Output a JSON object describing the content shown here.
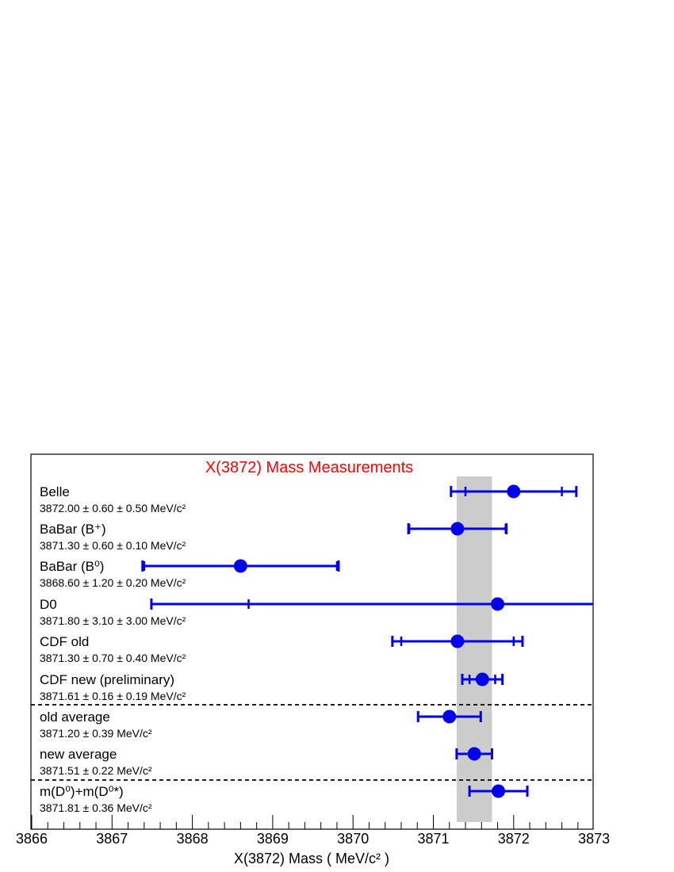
{
  "chart_data": {
    "type": "scatter",
    "title": "X(3872) Mass Measurements",
    "xlabel": "X(3872) Mass  ( MeV/c² )",
    "xlim": [
      3866,
      3873
    ],
    "x_ticks": [
      "3866",
      "3867",
      "3868",
      "3869",
      "3870",
      "3871",
      "3872",
      "3873"
    ],
    "grid": false,
    "band": {
      "low": 3871.29,
      "high": 3871.73
    },
    "colors": {
      "title": "#ff0000",
      "points": "#0000ee",
      "band": "#cccccc"
    },
    "entries": [
      {
        "name": "Belle",
        "value_text": "3872.00 ± 0.60 ± 0.50 MeV/c²",
        "x": 3872.0,
        "stat": 0.6,
        "total": 0.78
      },
      {
        "name": "BaBar (B⁺)",
        "value_text": "3871.30 ± 0.60 ± 0.10 MeV/c²",
        "x": 3871.3,
        "stat": 0.6,
        "total": 0.61
      },
      {
        "name": "BaBar (B⁰)",
        "value_text": "3868.60 ± 1.20 ± 0.20 MeV/c²",
        "x": 3868.6,
        "stat": 1.2,
        "total": 1.22
      },
      {
        "name": "D0",
        "value_text": "3871.80 ± 3.10 ± 3.00 MeV/c²",
        "x": 3871.8,
        "stat": 3.1,
        "total": 4.31
      },
      {
        "name": "CDF old",
        "value_text": "3871.30 ± 0.70 ± 0.40 MeV/c²",
        "x": 3871.3,
        "stat": 0.7,
        "total": 0.81
      },
      {
        "name": "CDF new (preliminary)",
        "value_text": "3871.61 ± 0.16 ± 0.19 MeV/c²",
        "x": 3871.61,
        "stat": 0.16,
        "total": 0.25
      },
      {
        "name": "old average",
        "value_text": "3871.20 ± 0.39 MeV/c²",
        "x": 3871.2,
        "stat": null,
        "total": 0.39
      },
      {
        "name": "new average",
        "value_text": "3871.51 ± 0.22 MeV/c²",
        "x": 3871.51,
        "stat": null,
        "total": 0.22
      },
      {
        "name": "m(D⁰)+m(D⁰*)",
        "value_text": "3871.81 ± 0.36 MeV/c²",
        "x": 3871.81,
        "stat": null,
        "total": 0.36
      }
    ]
  }
}
